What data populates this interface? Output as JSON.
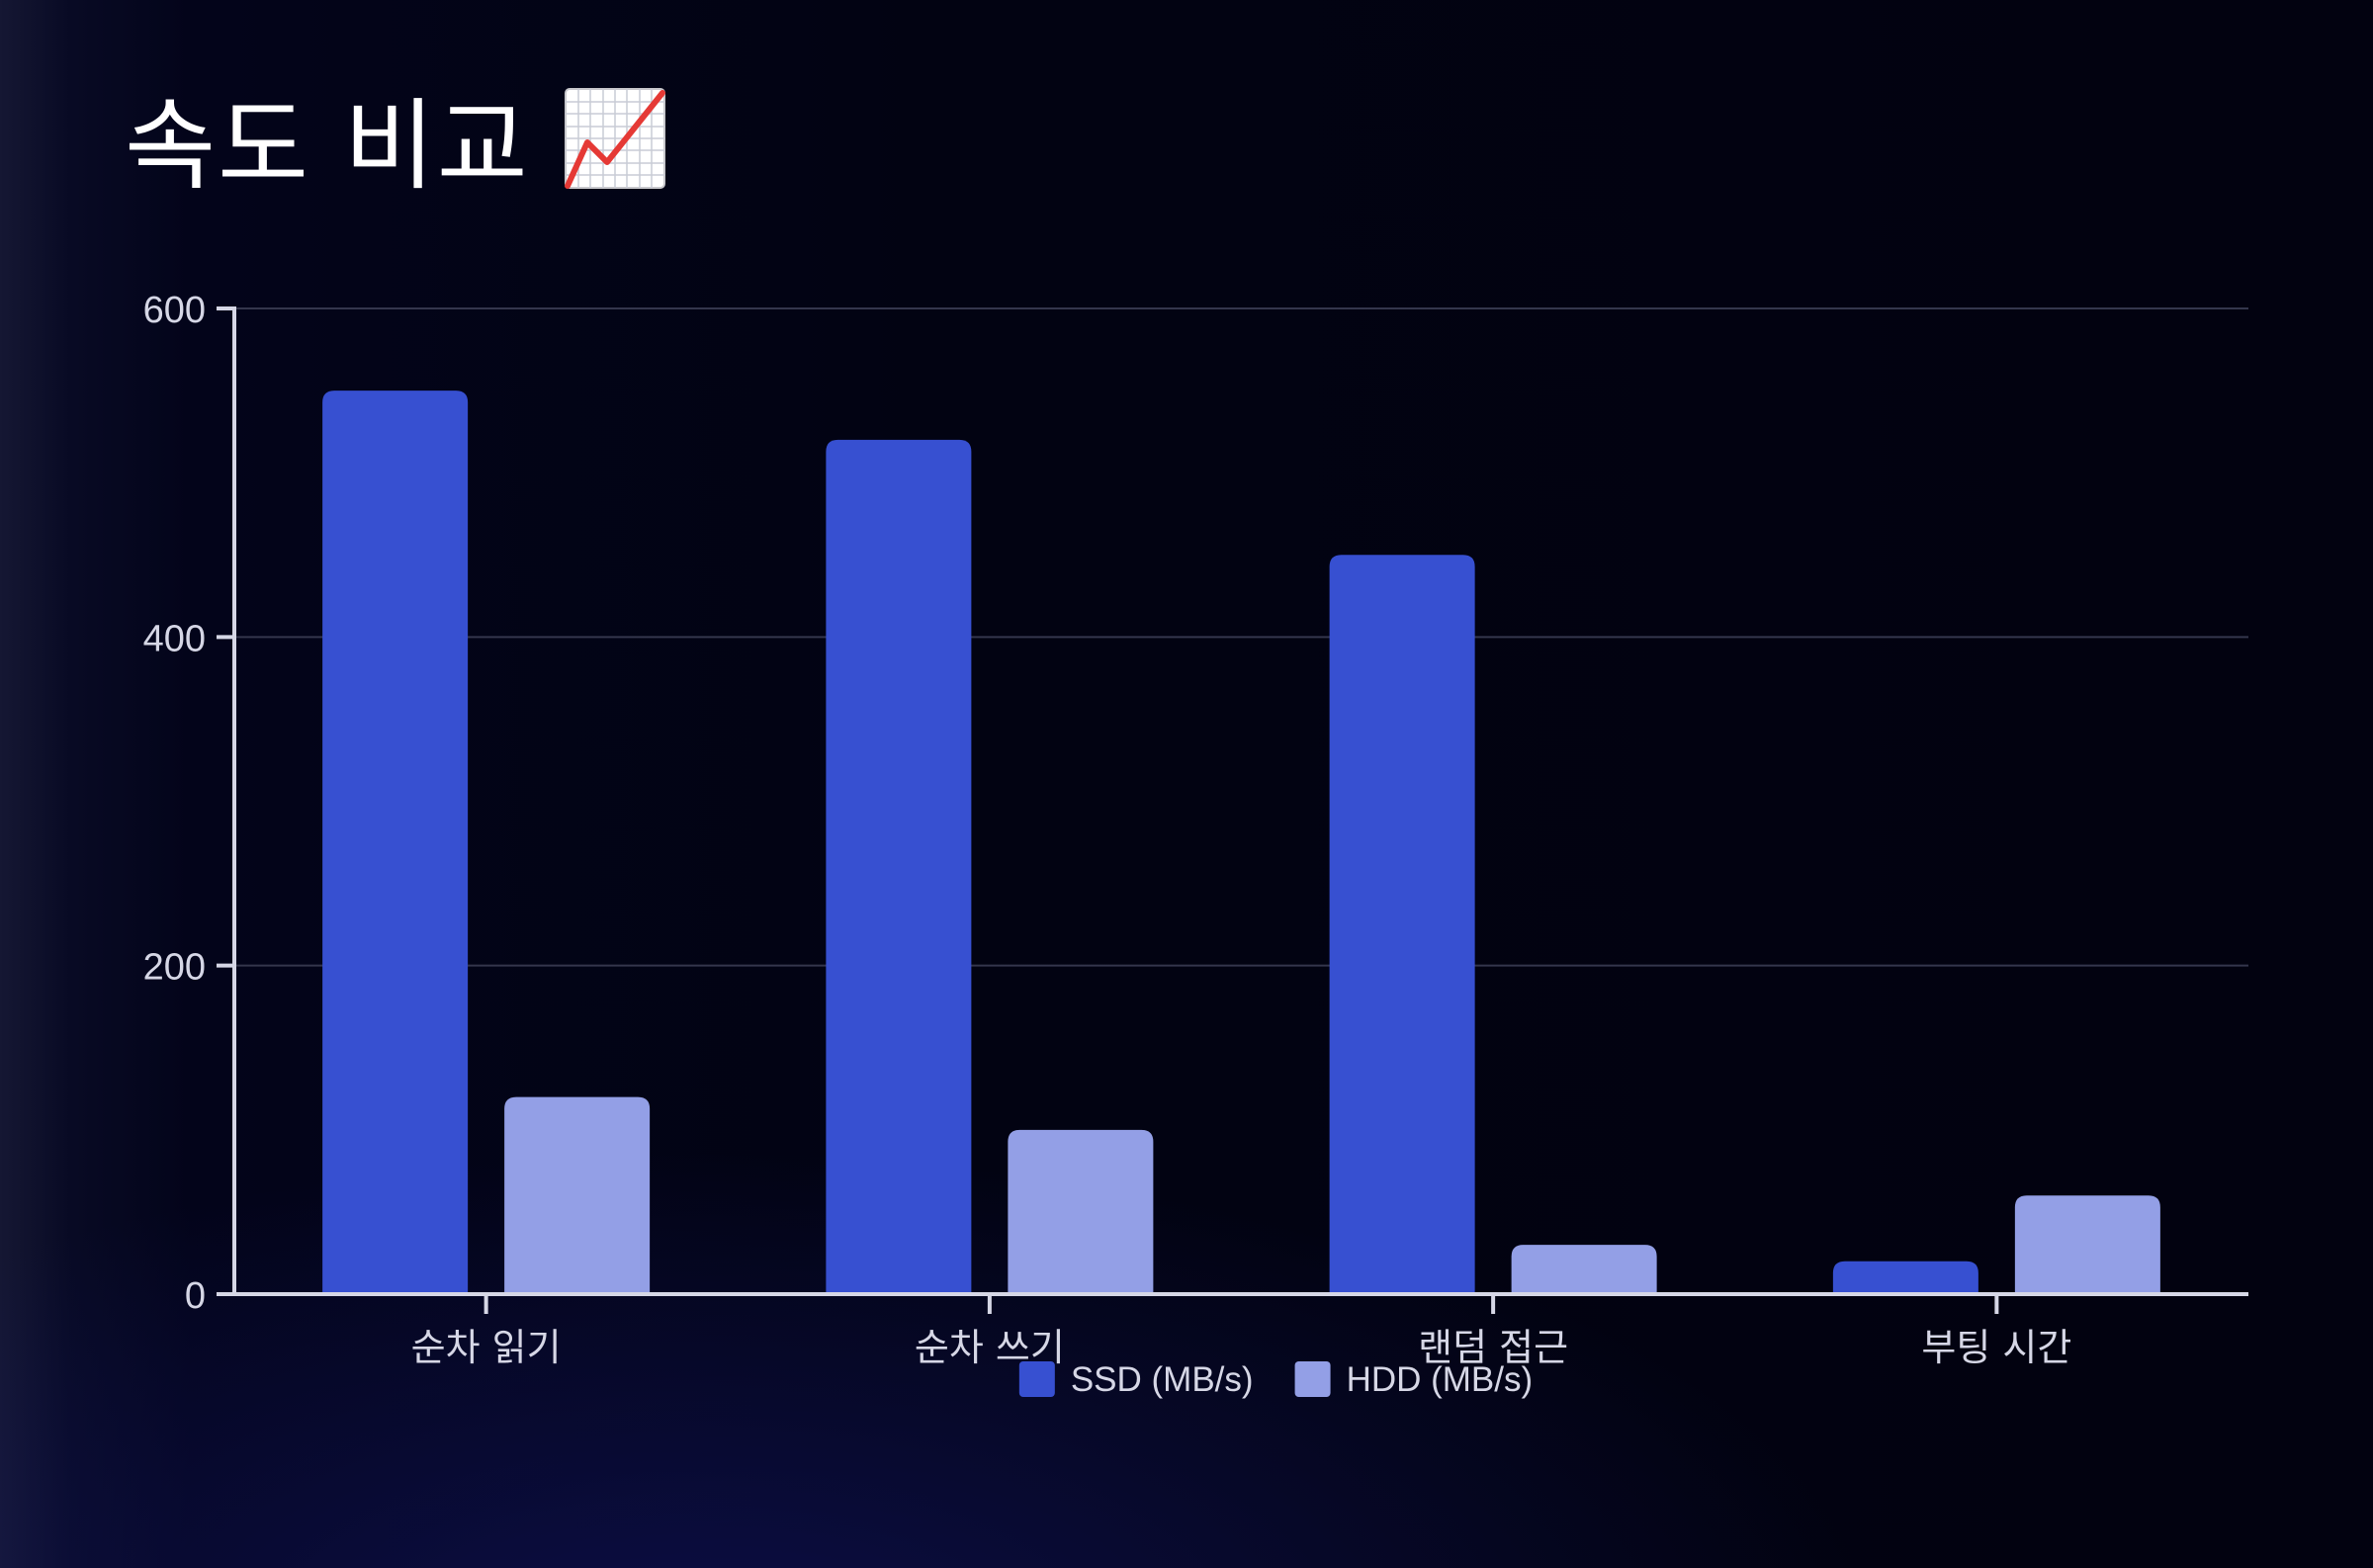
{
  "chart_data": {
    "type": "bar",
    "title": "속도 비교",
    "title_icon": "chart-increasing-icon",
    "categories": [
      "순차 읽기",
      "순차 쓰기",
      "랜덤 접근",
      "부팅 시간"
    ],
    "series": [
      {
        "name": "SSD (MB/s)",
        "values": [
          550,
          520,
          450,
          20
        ],
        "color": "#3750d1"
      },
      {
        "name": "HDD (MB/s)",
        "values": [
          120,
          100,
          30,
          60
        ],
        "color": "#939fe6"
      }
    ],
    "xlabel": "",
    "ylabel": "",
    "ylim": [
      0,
      600
    ],
    "yticks": [
      0,
      200,
      400,
      600
    ],
    "grid": true,
    "legend_position": "bottom-center"
  }
}
